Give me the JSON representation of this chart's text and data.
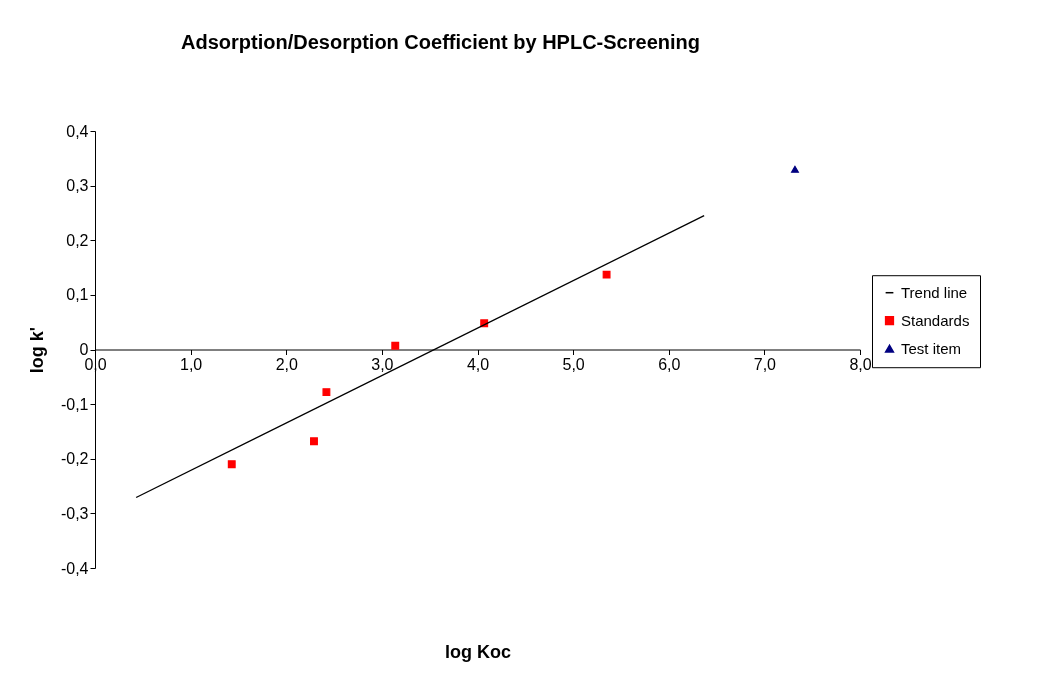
{
  "chart_data": {
    "type": "scatter",
    "title": "Adsorption/Desorption Coefficient by HPLC-Screening",
    "xlabel": "log Koc",
    "ylabel": "log k'",
    "xlim": [
      0,
      8
    ],
    "ylim": [
      -0.4,
      0.4
    ],
    "xticks": [
      {
        "value": 0,
        "label": "0,0"
      },
      {
        "value": 1,
        "label": "1,0"
      },
      {
        "value": 2,
        "label": "2,0"
      },
      {
        "value": 3,
        "label": "3,0"
      },
      {
        "value": 4,
        "label": "4,0"
      },
      {
        "value": 5,
        "label": "5,0"
      },
      {
        "value": 6,
        "label": "6,0"
      },
      {
        "value": 7,
        "label": "7,0"
      },
      {
        "value": 8,
        "label": "8,0"
      }
    ],
    "yticks": [
      {
        "value": -0.4,
        "label": "-0,4"
      },
      {
        "value": -0.3,
        "label": "-0,3"
      },
      {
        "value": -0.2,
        "label": "-0,2"
      },
      {
        "value": -0.1,
        "label": "-0,1"
      },
      0,
      {
        "value": 0.1,
        "label": "0,1"
      },
      {
        "value": 0.2,
        "label": "0,2"
      },
      {
        "value": 0.3,
        "label": "0,3"
      },
      {
        "value": 0.4,
        "label": "0,4"
      }
    ],
    "grid": false,
    "legend": "right",
    "series": [
      {
        "name": "Trend line",
        "type": "line",
        "color": "#000000",
        "line_style": "solid",
        "x": [
          0.43,
          6.37
        ],
        "values": [
          -0.271,
          0.245
        ]
      },
      {
        "name": "Standards",
        "marker": "square",
        "color": "#ff0000",
        "x": [
          1.43,
          2.29,
          2.42,
          3.14,
          4.07,
          5.35
        ],
        "values": [
          -0.21,
          -0.168,
          -0.078,
          0.007,
          0.048,
          0.137
        ]
      },
      {
        "name": "Test item",
        "marker": "triangle",
        "color": "#000080",
        "x": [
          7.32
        ],
        "values": [
          0.33
        ]
      }
    ]
  }
}
